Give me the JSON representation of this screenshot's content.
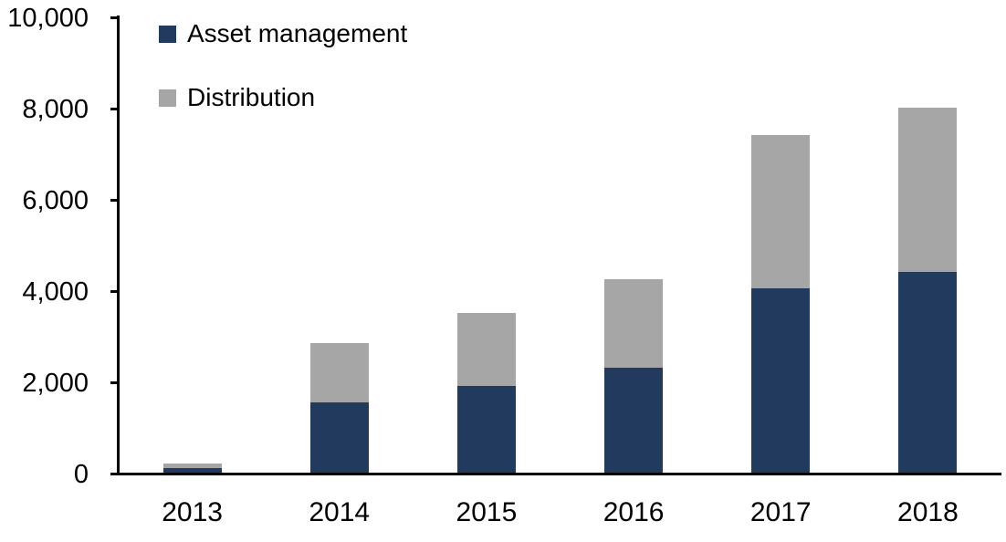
{
  "chart_data": {
    "type": "bar",
    "stacked": true,
    "title": "",
    "xlabel": "",
    "ylabel": "",
    "categories": [
      "2013",
      "2014",
      "2015",
      "2016",
      "2017",
      "2018"
    ],
    "series": [
      {
        "name": "Asset management",
        "color": "#213A5E",
        "values": [
          100,
          1550,
          1900,
          2300,
          4050,
          4400
        ]
      },
      {
        "name": "Distribution",
        "color": "#A6A6A6",
        "values": [
          100,
          1300,
          1600,
          1950,
          3350,
          3600
        ]
      }
    ],
    "totals": [
      200,
      2850,
      3500,
      4250,
      7400,
      8000
    ],
    "ylim": [
      0,
      10000
    ],
    "y_ticks": [
      {
        "value": 0,
        "label": "0"
      },
      {
        "value": 2000,
        "label": "2,000"
      },
      {
        "value": 4000,
        "label": "4,000"
      },
      {
        "value": 6000,
        "label": "6,000"
      },
      {
        "value": 8000,
        "label": "8,000"
      },
      {
        "value": 10000,
        "label": "10,000"
      }
    ],
    "grid": false,
    "legend_position": "inside-top-left",
    "axis_color": "#000000",
    "background_color": "#FFFFFF",
    "text_color": "#000000"
  }
}
